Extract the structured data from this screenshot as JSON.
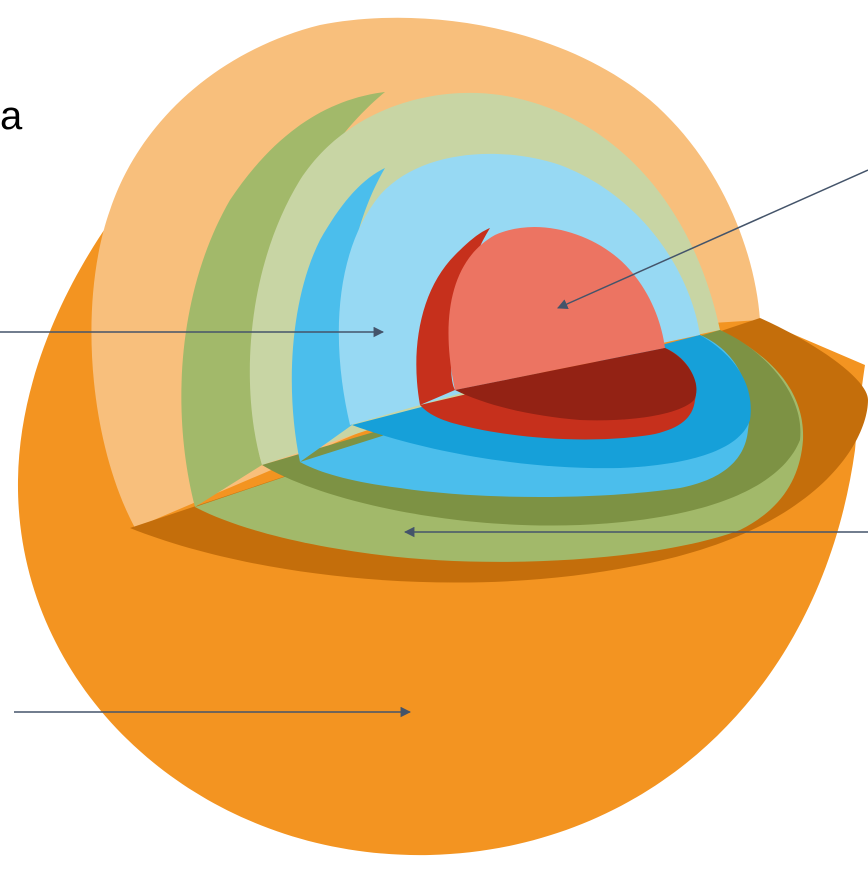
{
  "fragment_text": "a",
  "colors": {
    "crust_outer": "#F39421",
    "crust_inner": "#F8BF7C",
    "crust_floor": "#C46E0B",
    "mantle_inner": "#C8D5A4",
    "mantle_wall": "#A2B96A",
    "mantle_floor": "#7D9244",
    "outer_core_inner": "#97D9F3",
    "outer_core_wall": "#4BBEEC",
    "outer_core_floor": "#16A0D9",
    "inner_core_inner": "#EC7462",
    "inner_core_wall": "#C6301C",
    "inner_core_floor": "#932214",
    "pointer": "#44546A"
  }
}
